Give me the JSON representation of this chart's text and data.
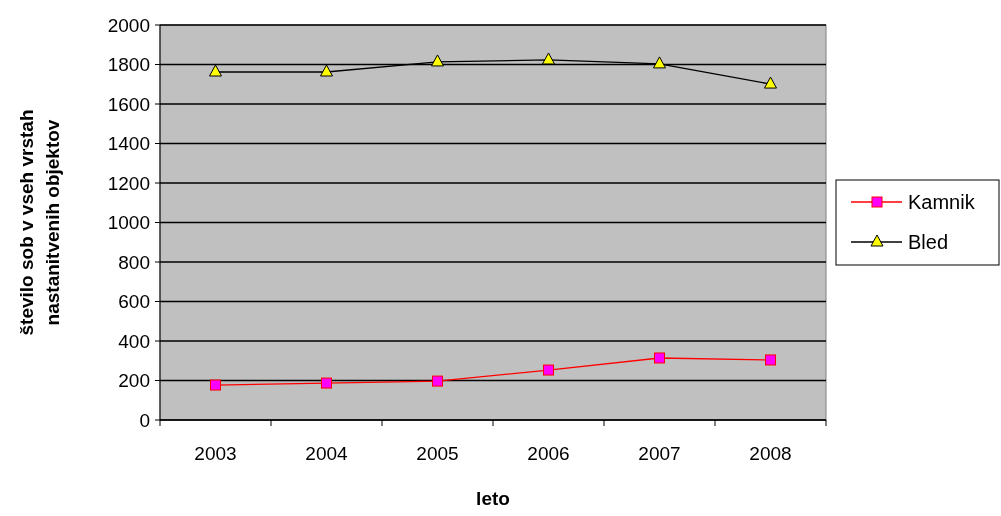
{
  "chart_data": {
    "type": "line",
    "xlabel": "leto",
    "ylabel": "število sob v vseh vrstah\nnastanitvenih objektov",
    "categories": [
      "2003",
      "2004",
      "2005",
      "2006",
      "2007",
      "2008"
    ],
    "series": [
      {
        "name": "Kamnik",
        "color": "#ff0000",
        "marker": "square",
        "values": [
          177,
          187,
          197,
          253,
          314,
          304
        ]
      },
      {
        "name": "Bled",
        "color": "#000000",
        "marker": "triangle",
        "values": [
          1762,
          1762,
          1813,
          1823,
          1803,
          1701
        ]
      }
    ],
    "ylim": [
      0,
      2000
    ],
    "yticks": [
      0,
      200,
      400,
      600,
      800,
      1000,
      1200,
      1400,
      1600,
      1800,
      2000
    ],
    "grid": "y",
    "legend": "right",
    "line_style": "solid"
  }
}
